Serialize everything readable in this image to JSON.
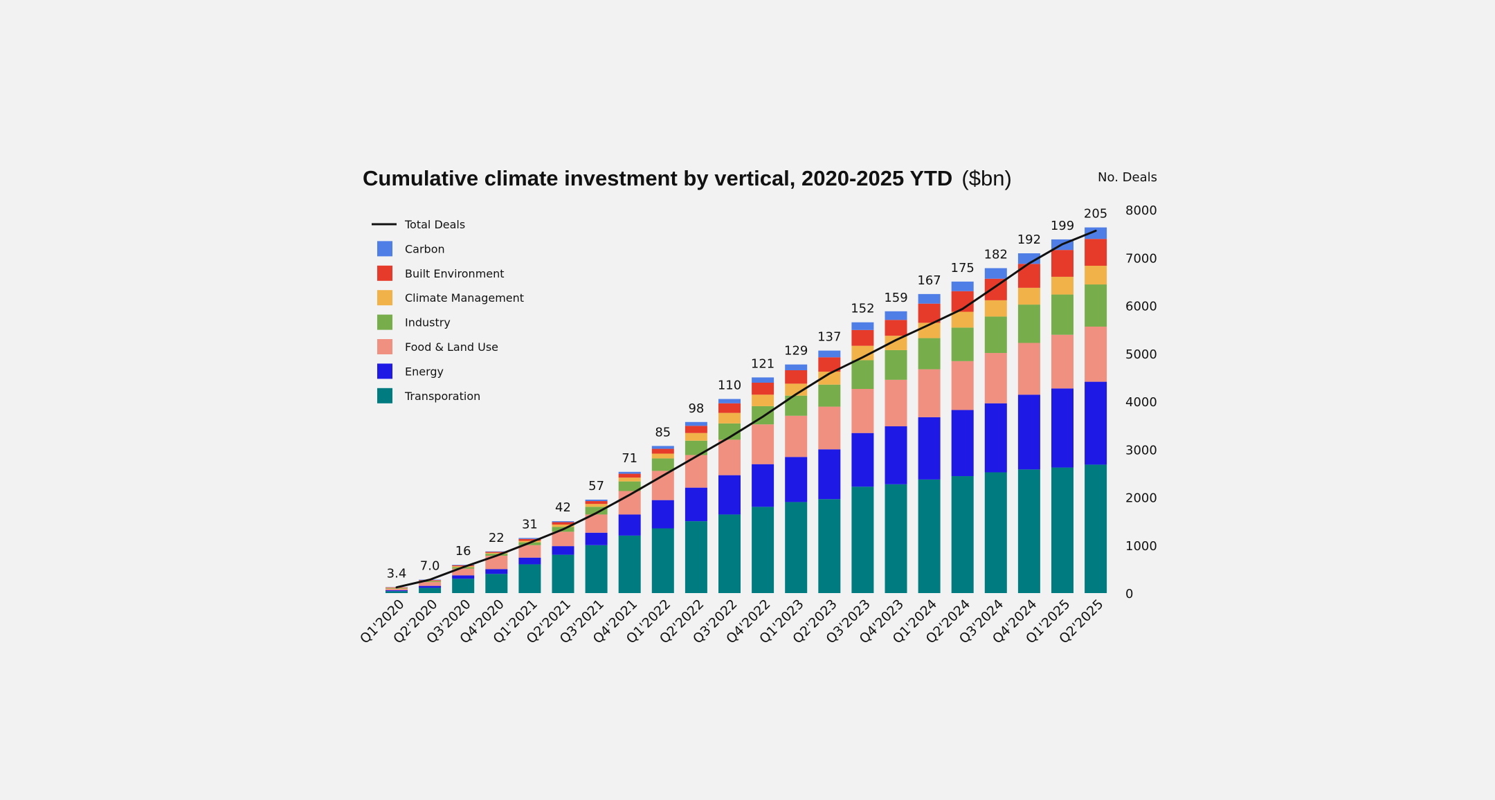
{
  "chart_data": {
    "type": "bar",
    "stacked": true,
    "title": "Cumulative climate investment by vertical, 2020-2025 YTD",
    "title_unit": "($bn)",
    "secondary_axis_title": "No. Deals",
    "ylim": [
      0,
      8000
    ],
    "yticks": [
      0,
      1000,
      2000,
      3000,
      4000,
      5000,
      6000,
      7000,
      8000
    ],
    "legend_position": "top-left",
    "categories": [
      "Q1'2020",
      "Q2'2020",
      "Q3'2020",
      "Q4'2020",
      "Q1'2021",
      "Q2'2021",
      "Q3'2021",
      "Q4'2021",
      "Q1'2022",
      "Q2'2022",
      "Q3'2022",
      "Q4'2022",
      "Q1'2023",
      "Q2'2023",
      "Q3'2023",
      "Q4'2023",
      "Q1'2024",
      "Q2'2024",
      "Q3'2024",
      "Q4'2024",
      "Q1'2025",
      "Q2'2025"
    ],
    "bar_labels": [
      "3.4",
      "7.0",
      "16",
      "22",
      "31",
      "42",
      "57",
      "71",
      "85",
      "98",
      "110",
      "121",
      "129",
      "137",
      "152",
      "159",
      "167",
      "175",
      "182",
      "192",
      "199",
      "205"
    ],
    "series": [
      {
        "name": "Transporation",
        "color": "#007b80",
        "values": [
          40,
          110,
          300,
          400,
          600,
          800,
          1000,
          1200,
          1350,
          1500,
          1640,
          1800,
          1900,
          1960,
          2220,
          2270,
          2370,
          2440,
          2520,
          2580,
          2620,
          2680
        ]
      },
      {
        "name": "Energy",
        "color": "#1f19e6",
        "values": [
          20,
          40,
          70,
          100,
          140,
          180,
          260,
          440,
          590,
          700,
          820,
          890,
          940,
          1040,
          1120,
          1210,
          1300,
          1380,
          1440,
          1560,
          1650,
          1730
        ]
      },
      {
        "name": "Food & Land Use",
        "color": "#ef9080",
        "values": [
          30,
          80,
          140,
          280,
          260,
          300,
          380,
          490,
          610,
          680,
          740,
          830,
          860,
          890,
          920,
          970,
          1000,
          1020,
          1050,
          1080,
          1120,
          1150
        ]
      },
      {
        "name": "Industry",
        "color": "#78ad4c",
        "values": [
          10,
          15,
          30,
          40,
          60,
          100,
          160,
          200,
          260,
          300,
          340,
          380,
          420,
          460,
          600,
          620,
          650,
          700,
          760,
          800,
          840,
          880
        ]
      },
      {
        "name": "Climate Management",
        "color": "#f2b24a",
        "values": [
          10,
          10,
          20,
          20,
          30,
          50,
          60,
          80,
          100,
          160,
          220,
          240,
          250,
          270,
          300,
          300,
          320,
          330,
          340,
          350,
          370,
          390
        ]
      },
      {
        "name": "Built Environment",
        "color": "#e63b2b",
        "values": [
          10,
          15,
          20,
          20,
          40,
          50,
          60,
          80,
          100,
          150,
          200,
          250,
          280,
          300,
          330,
          330,
          400,
          430,
          450,
          500,
          560,
          560
        ]
      },
      {
        "name": "Carbon",
        "color": "#4f7fe6",
        "values": [
          5,
          10,
          10,
          10,
          20,
          20,
          30,
          40,
          60,
          80,
          90,
          110,
          120,
          140,
          160,
          180,
          200,
          200,
          220,
          220,
          220,
          240
        ]
      }
    ],
    "line_series": {
      "name": "Total Deals",
      "color": "#111111",
      "values": [
        120,
        280,
        540,
        780,
        1050,
        1330,
        1670,
        2050,
        2450,
        2850,
        3250,
        3680,
        4150,
        4580,
        4920,
        5280,
        5600,
        5930,
        6400,
        6880,
        7280,
        7560
      ]
    }
  }
}
